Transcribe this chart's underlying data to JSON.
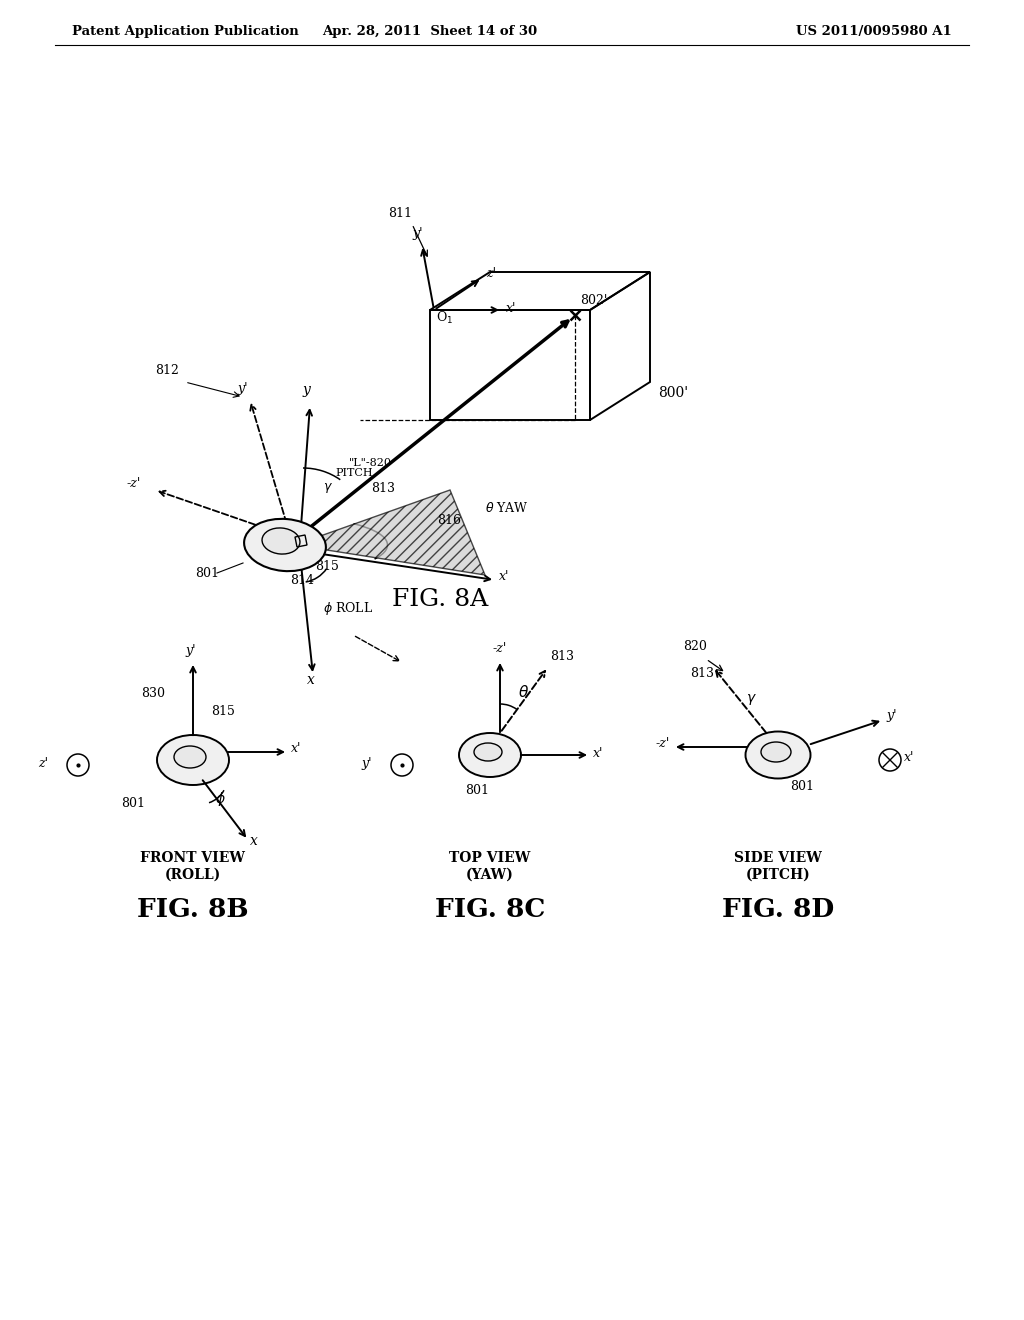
{
  "bg_color": "#ffffff",
  "header_left": "Patent Application Publication",
  "header_center": "Apr. 28, 2011  Sheet 14 of 30",
  "header_right": "US 2011/0095980 A1",
  "fig8a_label": "FIG. 8A",
  "fig8b_label": "FIG. 8B",
  "fig8c_label": "FIG. 8C",
  "fig8d_label": "FIG. 8D",
  "fig8b_title1": "FRONT VIEW",
  "fig8b_title2": "(ROLL)",
  "fig8c_title1": "TOP VIEW",
  "fig8c_title2": "(YAW)",
  "fig8d_title1": "SIDE VIEW",
  "fig8d_title2": "(PITCH)"
}
